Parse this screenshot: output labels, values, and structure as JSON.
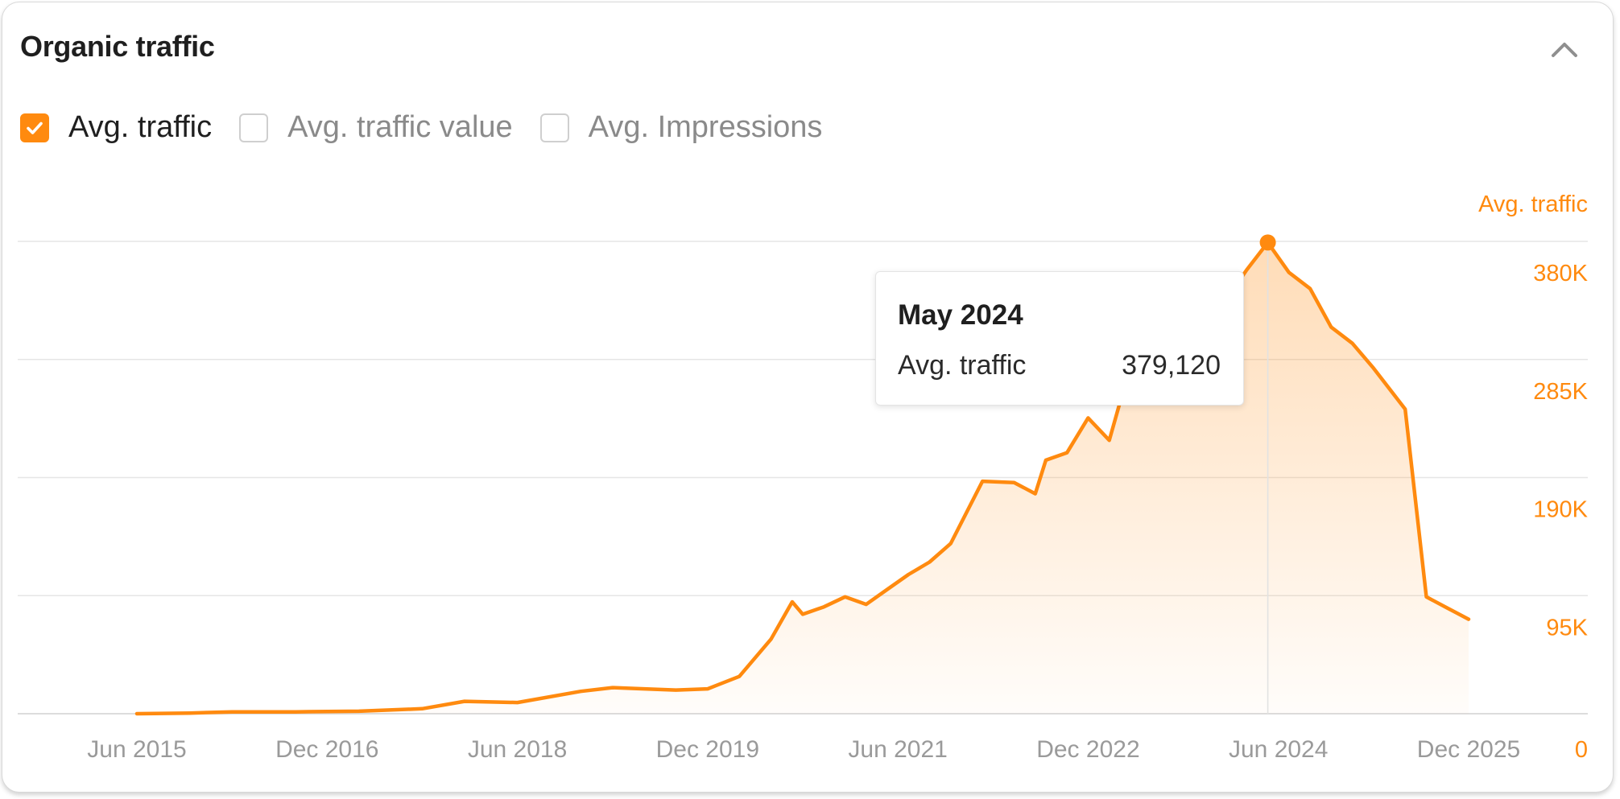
{
  "header": {
    "title": "Organic traffic",
    "collapse_icon": "chevron-up-icon"
  },
  "metrics": [
    {
      "label": "Avg. traffic",
      "checked": true
    },
    {
      "label": "Avg. traffic value",
      "checked": false
    },
    {
      "label": "Avg. Impressions",
      "checked": false
    }
  ],
  "colors": {
    "accent": "#ff8a0f",
    "grid": "#e6e6e6",
    "tick": "#9a9a9a"
  },
  "tooltip": {
    "date": "May 2024",
    "label": "Avg. traffic",
    "value": "379,120"
  },
  "chart_data": {
    "type": "area",
    "x_axis_type": "month",
    "x_start": "2015-06",
    "x_end": "2025-12",
    "xticks": [
      "Jun 2015",
      "Dec 2016",
      "Jun 2018",
      "Dec 2019",
      "Jun 2021",
      "Dec 2022",
      "Jun 2024",
      "Dec 2025"
    ],
    "xtick_dates": [
      "2015-06",
      "2016-12",
      "2018-06",
      "2019-12",
      "2021-06",
      "2022-12",
      "2024-06",
      "2025-12"
    ],
    "y_axis_title": "Avg. traffic",
    "yticks": [
      0,
      95000,
      190000,
      285000,
      380000
    ],
    "ytick_labels": [
      "0",
      "95K",
      "190K",
      "285K",
      "380K"
    ],
    "ylim": [
      0,
      380000
    ],
    "grid": true,
    "series": [
      {
        "name": "Avg. traffic",
        "highlight_point": {
          "x": "2024-05",
          "y": 379120
        },
        "points": [
          [
            "2015-06",
            0
          ],
          [
            "2015-11",
            500
          ],
          [
            "2016-03",
            1500
          ],
          [
            "2016-09",
            1500
          ],
          [
            "2017-03",
            2000
          ],
          [
            "2017-09",
            4000
          ],
          [
            "2018-01",
            10000
          ],
          [
            "2018-06",
            9000
          ],
          [
            "2018-12",
            18000
          ],
          [
            "2019-03",
            21000
          ],
          [
            "2019-06",
            20000
          ],
          [
            "2019-09",
            19000
          ],
          [
            "2019-12",
            20000
          ],
          [
            "2020-03",
            30000
          ],
          [
            "2020-06",
            60000
          ],
          [
            "2020-08",
            90000
          ],
          [
            "2020-09",
            80000
          ],
          [
            "2020-11",
            86000
          ],
          [
            "2021-01",
            94000
          ],
          [
            "2021-03",
            88000
          ],
          [
            "2021-05",
            100000
          ],
          [
            "2021-07",
            112000
          ],
          [
            "2021-09",
            122000
          ],
          [
            "2021-11",
            137000
          ],
          [
            "2022-02",
            187000
          ],
          [
            "2022-05",
            186000
          ],
          [
            "2022-07",
            177000
          ],
          [
            "2022-08",
            204000
          ],
          [
            "2022-10",
            210000
          ],
          [
            "2022-12",
            238000
          ],
          [
            "2023-02",
            220000
          ],
          [
            "2023-03",
            250000
          ],
          [
            "2023-06",
            275000
          ],
          [
            "2023-09",
            295000
          ],
          [
            "2023-12",
            320000
          ],
          [
            "2024-03",
            357000
          ],
          [
            "2024-05",
            379120
          ],
          [
            "2024-07",
            355000
          ],
          [
            "2024-09",
            342000
          ],
          [
            "2024-11",
            311000
          ],
          [
            "2025-01",
            298000
          ],
          [
            "2025-03",
            278000
          ],
          [
            "2025-06",
            245000
          ],
          [
            "2025-08",
            94000
          ],
          [
            "2025-10",
            85000
          ],
          [
            "2025-12",
            76000
          ]
        ]
      }
    ]
  }
}
